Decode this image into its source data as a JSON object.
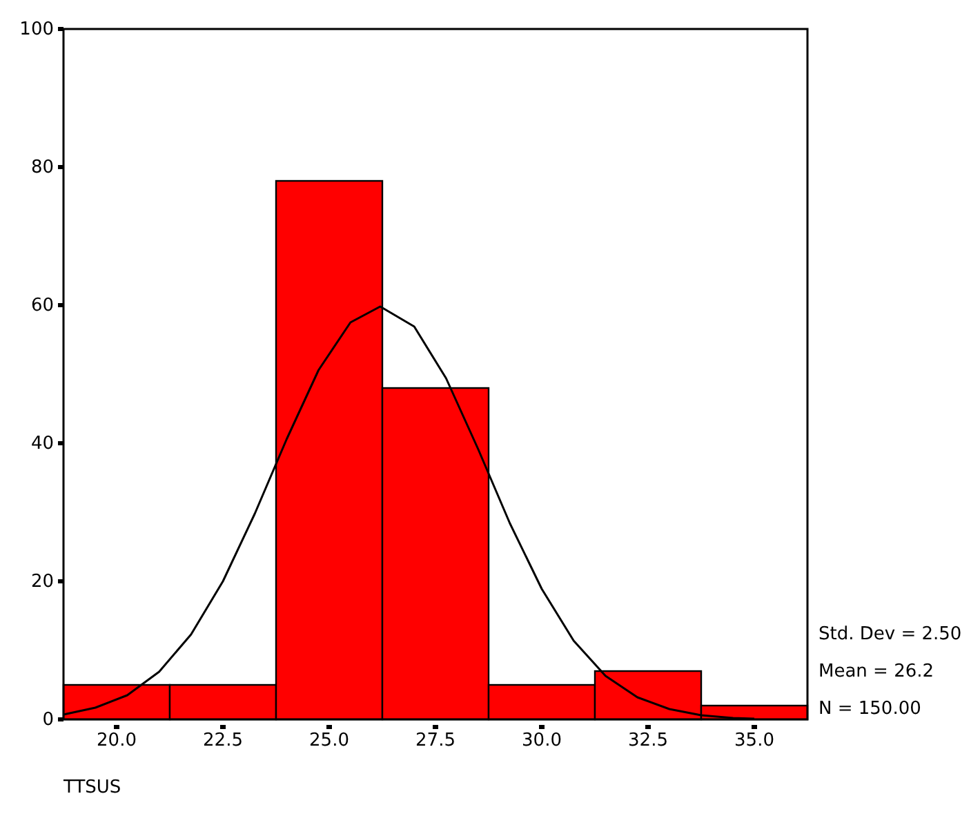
{
  "chart_data": {
    "type": "histogram",
    "xlabel": "TTSUS",
    "bins": [
      18.75,
      21.25,
      23.75,
      26.25,
      28.75,
      31.25,
      33.75,
      36.25
    ],
    "values": [
      5,
      5,
      78,
      48,
      5,
      7,
      2
    ],
    "color": "#ff0000",
    "series": [
      {
        "type": "line",
        "color": "#000000",
        "x": [
          18.75,
          19.5,
          20.25,
          21,
          21.75,
          22.5,
          23.25,
          24,
          24.75,
          25.5,
          26.2,
          27,
          27.75,
          28.5,
          29.25,
          30,
          30.75,
          31.5,
          32.25,
          33,
          33.75,
          34.5,
          35
        ],
        "values": [
          0.7,
          1.7,
          3.5,
          6.9,
          12.3,
          20,
          29.8,
          40.6,
          50.6,
          57.5,
          59.8,
          56.9,
          49.4,
          39.2,
          28.4,
          18.9,
          11.4,
          6.3,
          3.2,
          1.5,
          0.6,
          0.2,
          0.1
        ]
      }
    ],
    "xlim": [
      18.75,
      36.25
    ],
    "xticks": [
      {
        "value": 20,
        "label": "20.0"
      },
      {
        "value": 22.5,
        "label": "22.5"
      },
      {
        "value": 25,
        "label": "25.0"
      },
      {
        "value": 27.5,
        "label": "27.5"
      },
      {
        "value": 30,
        "label": "30.0"
      },
      {
        "value": 32.5,
        "label": "32.5"
      },
      {
        "value": 35,
        "label": "35.0"
      }
    ],
    "ylim": [
      0,
      100
    ],
    "yticks": [
      0,
      20,
      40,
      60,
      80,
      100
    ],
    "annotations": [
      "Std. Dev = 2.50",
      "Mean = 26.2",
      "N = 150.00"
    ],
    "grid": false
  }
}
